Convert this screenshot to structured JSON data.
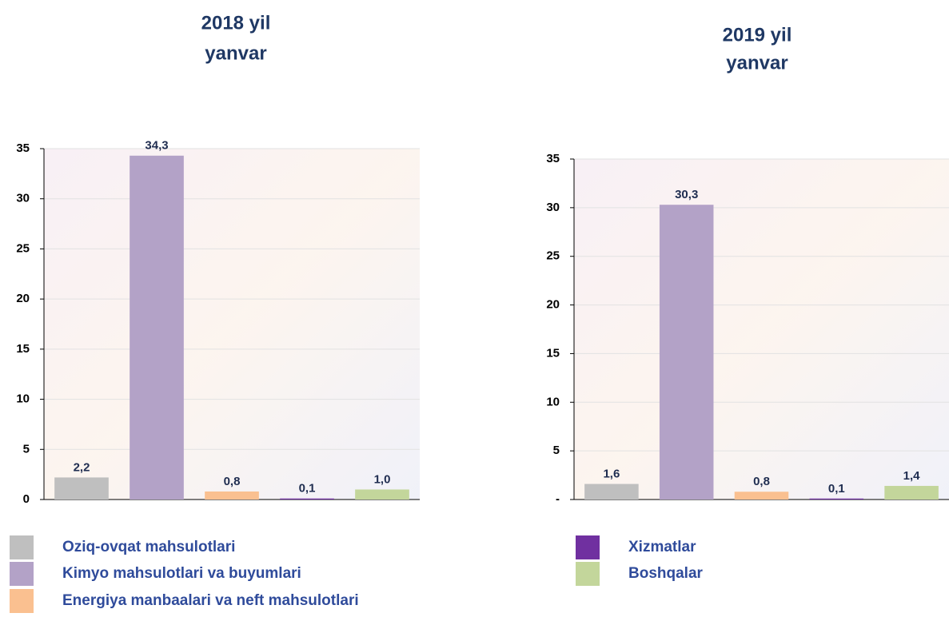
{
  "chart_data": [
    {
      "type": "bar",
      "title": "2018 yil",
      "subtitle": "yanvar",
      "values": [
        2.2,
        34.3,
        0.8,
        0.1,
        1.0
      ],
      "value_labels": [
        "2,2",
        "34,3",
        "0,8",
        "0,1",
        "1,0"
      ],
      "colors": [
        "#bfbfbf",
        "#b3a2c7",
        "#fac090",
        "#7030a0",
        "#c3d69b"
      ],
      "ylim": [
        0,
        35
      ],
      "yticks": [
        0,
        5,
        10,
        15,
        20,
        25,
        30,
        35
      ],
      "grid": true
    },
    {
      "type": "bar",
      "title": "2019 yil",
      "subtitle": "yanvar",
      "values": [
        1.6,
        30.3,
        0.8,
        0.1,
        1.4
      ],
      "value_labels": [
        "1,6",
        "30,3",
        "0,8",
        "0,1",
        "1,4"
      ],
      "colors": [
        "#bfbfbf",
        "#b3a2c7",
        "#fac090",
        "#7030a0",
        "#c3d69b"
      ],
      "ylim": [
        0,
        35
      ],
      "yticks": [
        {
          "value": 0,
          "label": "-"
        },
        5,
        10,
        15,
        20,
        25,
        30,
        35
      ],
      "grid": true
    }
  ],
  "legend": {
    "items": [
      {
        "name": "Oziq-ovqat mahsulotlari",
        "color": "#bfbfbf"
      },
      {
        "name": "Kimyo mahsulotlari va buyumlari",
        "color": "#b3a2c7"
      },
      {
        "name": "Energiya manbaalari va neft mahsulotlari",
        "color": "#fac090"
      },
      {
        "name": "Xizmatlar",
        "color": "#7030a0"
      },
      {
        "name": "Boshqalar",
        "color": "#c3d69b"
      }
    ]
  }
}
